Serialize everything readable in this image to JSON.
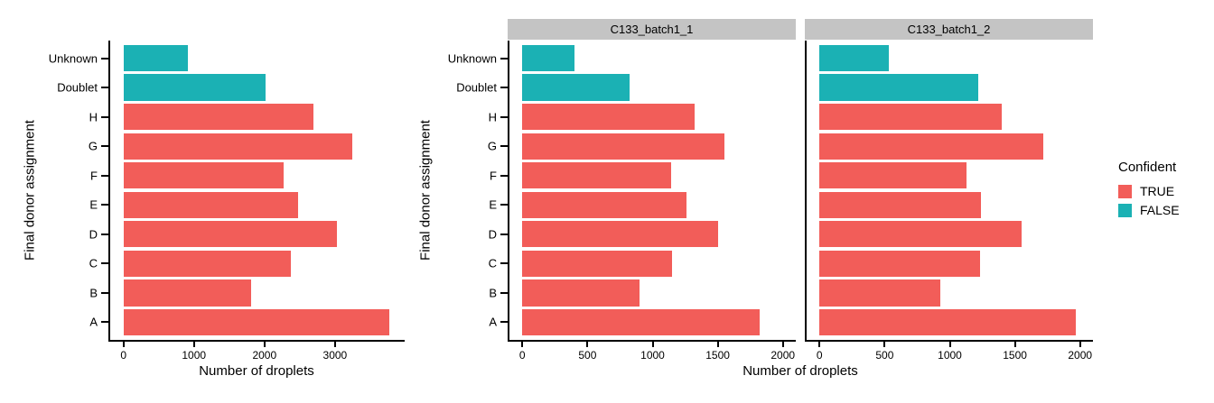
{
  "colors": {
    "confident_true": "#F25D59",
    "confident_false": "#1BB1B4",
    "strip_background": "#C4C4C4",
    "axis_line": "#000000",
    "text": "#000000"
  },
  "legend": {
    "title": "Confident",
    "items": [
      {
        "label": "TRUE",
        "color": "#F25D59"
      },
      {
        "label": "FALSE",
        "color": "#1BB1B4"
      }
    ]
  },
  "chart_data": [
    {
      "type": "bar",
      "orientation": "horizontal",
      "facet_label": "",
      "ylabel": "Final donor assignment",
      "xlabel": "Number of droplets",
      "categories": [
        "Unknown",
        "Doublet",
        "H",
        "G",
        "F",
        "E",
        "D",
        "C",
        "B",
        "A"
      ],
      "values": [
        910,
        2020,
        2700,
        3240,
        2270,
        2480,
        3030,
        2380,
        1810,
        3770
      ],
      "confident": [
        false,
        false,
        true,
        true,
        true,
        true,
        true,
        true,
        true,
        true
      ],
      "xlim": [
        0,
        3800
      ],
      "xticks": [
        0,
        1000,
        2000,
        3000
      ],
      "grid": "off",
      "show_y_labels": true
    },
    {
      "type": "bar",
      "orientation": "horizontal",
      "facet_label": "C133_batch1_1",
      "ylabel": "Final donor assignment",
      "xlabel": "Number of droplets",
      "categories": [
        "Unknown",
        "Doublet",
        "H",
        "G",
        "F",
        "E",
        "D",
        "C",
        "B",
        "A"
      ],
      "values": [
        400,
        820,
        1320,
        1550,
        1140,
        1260,
        1500,
        1150,
        900,
        1820
      ],
      "confident": [
        false,
        false,
        true,
        true,
        true,
        true,
        true,
        true,
        true,
        true
      ],
      "xlim": [
        0,
        2000
      ],
      "xticks": [
        0,
        500,
        1000,
        1500,
        2000
      ],
      "grid": "off",
      "show_y_labels": true
    },
    {
      "type": "bar",
      "orientation": "horizontal",
      "facet_label": "C133_batch1_2",
      "ylabel": "Final donor assignment",
      "xlabel": "Number of droplets",
      "categories": [
        "Unknown",
        "Doublet",
        "H",
        "G",
        "F",
        "E",
        "D",
        "C",
        "B",
        "A"
      ],
      "values": [
        530,
        1220,
        1400,
        1720,
        1130,
        1240,
        1550,
        1230,
        930,
        1970
      ],
      "confident": [
        false,
        false,
        true,
        true,
        true,
        true,
        true,
        true,
        true,
        true
      ],
      "xlim": [
        0,
        2000
      ],
      "xticks": [
        0,
        500,
        1000,
        1500,
        2000
      ],
      "grid": "off",
      "show_y_labels": false
    }
  ]
}
